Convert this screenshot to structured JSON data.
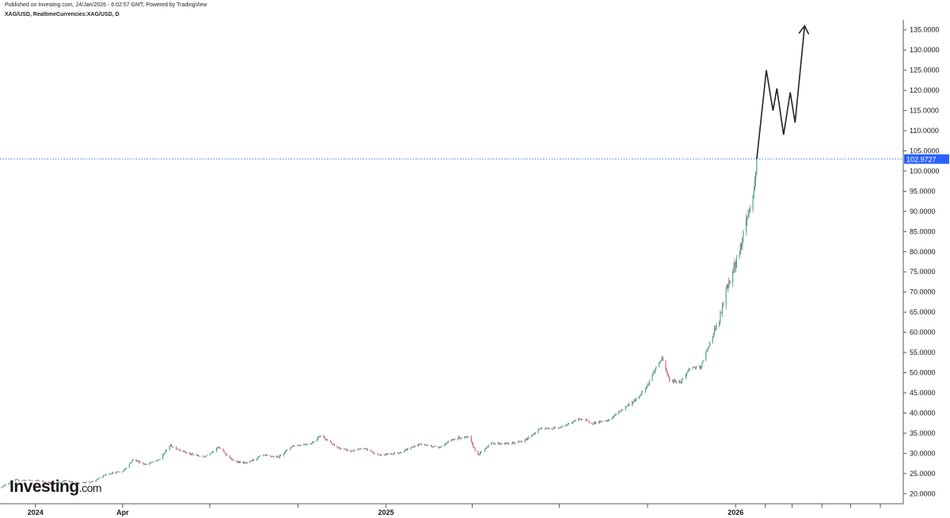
{
  "header": {
    "published_text": "Published on Investing.com, 24/Jan/2026 - 6:02:57 GMT, Powered by TradingView",
    "symbol_text": "XAG/USD, RealtimeCurrencies:XAG/USD, D"
  },
  "logo": {
    "main": "Investing",
    "suffix": ".com"
  },
  "colors": {
    "up": "#26a69a",
    "down": "#ef5350",
    "wick": "#555555",
    "price_line": "#2962ff",
    "price_tag": "#2962ff",
    "arrow": "#222222",
    "axis": "#555555"
  },
  "chart_data": {
    "type": "candlestick",
    "title": "",
    "xlabel": "",
    "ylabel": "",
    "x_range": [
      "2023-11-25",
      "2026-06-25"
    ],
    "ylim": [
      17.5,
      137.5
    ],
    "y_ticks": [
      "135.0000",
      "130.0000",
      "125.0000",
      "120.0000",
      "115.0000",
      "110.0000",
      "105.0000",
      "100.0000",
      "95.0000",
      "90.0000",
      "85.0000",
      "80.0000",
      "75.0000",
      "70.0000",
      "65.0000",
      "60.0000",
      "55.0000",
      "50.0000",
      "45.0000",
      "40.0000",
      "35.0000",
      "30.0000",
      "25.0000",
      "20.0000"
    ],
    "x_ticks": [
      {
        "date": "2024-01-01",
        "label": "2024"
      },
      {
        "date": "2024-04-01",
        "label": "Apr"
      },
      {
        "date": "2024-07-01",
        "label": ""
      },
      {
        "date": "2024-10-01",
        "label": ""
      },
      {
        "date": "2025-01-01",
        "label": "2025"
      },
      {
        "date": "2025-04-01",
        "label": ""
      },
      {
        "date": "2025-07-01",
        "label": ""
      },
      {
        "date": "2025-10-01",
        "label": ""
      },
      {
        "date": "2026-01-01",
        "label": "2026"
      },
      {
        "date": "2026-02-01",
        "label": ""
      },
      {
        "date": "2026-03-01",
        "label": ""
      },
      {
        "date": "2026-04-01",
        "label": ""
      },
      {
        "date": "2026-05-01",
        "label": ""
      },
      {
        "date": "2026-06-01",
        "label": ""
      }
    ],
    "last_price": 102.9727,
    "last_price_label": "102.9727",
    "price_path": [
      [
        "2023-11-25",
        21.5
      ],
      [
        "2023-12-10",
        23.4
      ],
      [
        "2024-01-05",
        23.2
      ],
      [
        "2024-01-20",
        22.5
      ],
      [
        "2024-02-01",
        23.2
      ],
      [
        "2024-02-15",
        22.6
      ],
      [
        "2024-03-01",
        22.9
      ],
      [
        "2024-03-15",
        24.9
      ],
      [
        "2024-04-01",
        25.5
      ],
      [
        "2024-04-12",
        28.5
      ],
      [
        "2024-04-25",
        27.2
      ],
      [
        "2024-05-10",
        28.5
      ],
      [
        "2024-05-20",
        32.0
      ],
      [
        "2024-06-10",
        29.8
      ],
      [
        "2024-06-25",
        29.1
      ],
      [
        "2024-07-10",
        31.5
      ],
      [
        "2024-07-25",
        28.2
      ],
      [
        "2024-08-08",
        27.5
      ],
      [
        "2024-08-25",
        29.5
      ],
      [
        "2024-09-10",
        29.0
      ],
      [
        "2024-09-25",
        31.8
      ],
      [
        "2024-10-15",
        32.5
      ],
      [
        "2024-10-25",
        34.5
      ],
      [
        "2024-11-10",
        31.5
      ],
      [
        "2024-11-25",
        30.5
      ],
      [
        "2024-12-10",
        31.2
      ],
      [
        "2024-12-25",
        29.5
      ],
      [
        "2025-01-15",
        30.2
      ],
      [
        "2025-02-05",
        32.3
      ],
      [
        "2025-02-25",
        31.5
      ],
      [
        "2025-03-15",
        33.8
      ],
      [
        "2025-03-28",
        34.0
      ],
      [
        "2025-04-07",
        29.5
      ],
      [
        "2025-04-20",
        32.5
      ],
      [
        "2025-05-10",
        32.4
      ],
      [
        "2025-05-25",
        33.0
      ],
      [
        "2025-06-10",
        36.0
      ],
      [
        "2025-06-25",
        36.2
      ],
      [
        "2025-07-10",
        37.2
      ],
      [
        "2025-07-22",
        38.6
      ],
      [
        "2025-08-05",
        37.5
      ],
      [
        "2025-08-20",
        38.0
      ],
      [
        "2025-09-05",
        41.0
      ],
      [
        "2025-09-20",
        43.5
      ],
      [
        "2025-10-01",
        47.0
      ],
      [
        "2025-10-08",
        50.5
      ],
      [
        "2025-10-16",
        53.5
      ],
      [
        "2025-10-24",
        48.0
      ],
      [
        "2025-11-05",
        47.8
      ],
      [
        "2025-11-15",
        51.5
      ],
      [
        "2025-11-25",
        51.0
      ],
      [
        "2025-12-05",
        57.5
      ],
      [
        "2025-12-15",
        63.0
      ],
      [
        "2025-12-24",
        72.0
      ],
      [
        "2025-12-29",
        75.0
      ],
      [
        "2026-01-05",
        80.0
      ],
      [
        "2026-01-12",
        88.0
      ],
      [
        "2026-01-16",
        91.0
      ],
      [
        "2026-01-20",
        95.0
      ],
      [
        "2026-01-23",
        102.97
      ]
    ],
    "projection": [
      [
        "2026-01-23",
        102.97
      ],
      [
        "2026-02-02",
        125.0
      ],
      [
        "2026-02-09",
        115.0
      ],
      [
        "2026-02-13",
        120.5
      ],
      [
        "2026-02-20",
        109.0
      ],
      [
        "2026-02-27",
        119.5
      ],
      [
        "2026-03-04",
        112.0
      ],
      [
        "2026-03-14",
        136.0
      ]
    ]
  }
}
